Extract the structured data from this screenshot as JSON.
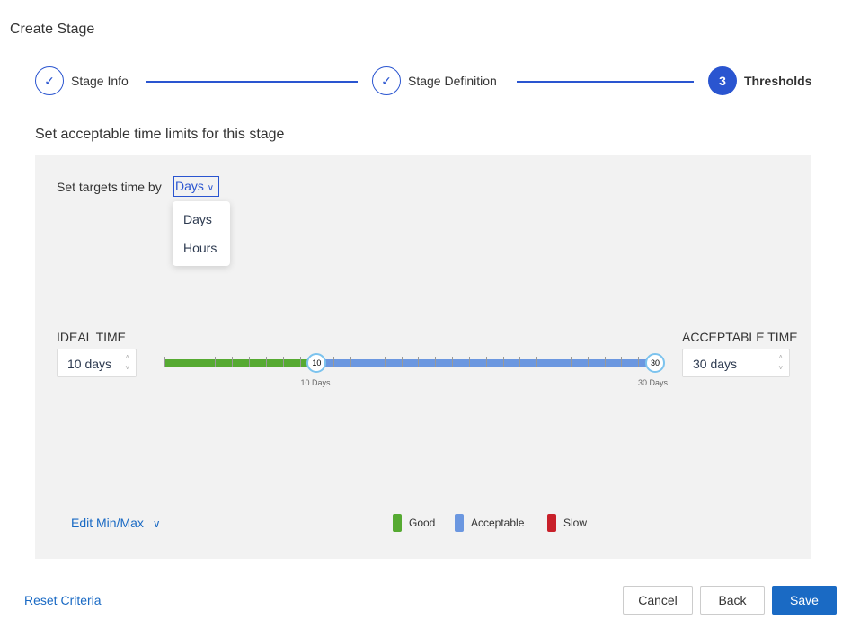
{
  "title": "Create Stage",
  "steps": [
    {
      "label": "Stage Info",
      "state": "done"
    },
    {
      "label": "Stage Definition",
      "state": "done"
    },
    {
      "label": "Thresholds",
      "number": "3",
      "state": "active"
    }
  ],
  "subtitle": "Set acceptable time limits for this stage",
  "targets_label": "Set targets time by",
  "unit": {
    "selected": "Days",
    "options": [
      "Days",
      "Hours"
    ]
  },
  "ideal": {
    "label": "IDEAL TIME",
    "value": "10 days",
    "handle": "10",
    "caption": "10 Days"
  },
  "acceptable": {
    "label": "ACCEPTABLE TIME",
    "value": "30 days",
    "handle": "30",
    "caption": "30 Days"
  },
  "slider": {
    "min": 1,
    "max": 30,
    "ideal": 10,
    "acceptable": 30
  },
  "edit_minmax": "Edit Min/Max",
  "legend": [
    {
      "label": "Good",
      "color": "#56aa32"
    },
    {
      "label": "Acceptable",
      "color": "#6b97e0"
    },
    {
      "label": "Slow",
      "color": "#c8202a"
    }
  ],
  "footer": {
    "reset": "Reset Criteria",
    "cancel": "Cancel",
    "back": "Back",
    "save": "Save"
  },
  "colors": {
    "accent": "#2a55d0",
    "primary_button": "#1a6ac4"
  }
}
